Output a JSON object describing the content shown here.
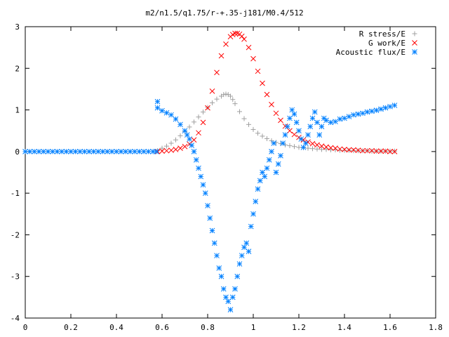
{
  "chart_data": {
    "type": "scatter",
    "title": "m2/n1.5/q1.75/r-+.35-j181/M0.4/512",
    "xlabel": "",
    "ylabel": "",
    "xlim": [
      0,
      1.8
    ],
    "ylim": [
      -4,
      3
    ],
    "x_ticks": [
      "0",
      "0.2",
      "0.4",
      "0.6",
      "0.8",
      "1",
      "1.2",
      "1.4",
      "1.6",
      "1.8"
    ],
    "y_ticks": [
      "-4",
      "-3",
      "-2",
      "-1",
      "0",
      "1",
      "2",
      "3"
    ],
    "grid": false,
    "legend_position": "top-right",
    "series": [
      {
        "name": "R stress/E",
        "marker": "+",
        "color": "#a0a0a0",
        "x": [
          0.58,
          0.6,
          0.62,
          0.64,
          0.66,
          0.68,
          0.7,
          0.72,
          0.74,
          0.76,
          0.78,
          0.8,
          0.82,
          0.84,
          0.86,
          0.87,
          0.88,
          0.89,
          0.9,
          0.91,
          0.92,
          0.94,
          0.96,
          0.98,
          1.0,
          1.02,
          1.04,
          1.06,
          1.08,
          1.1,
          1.12,
          1.14,
          1.16,
          1.18,
          1.2,
          1.22,
          1.24,
          1.26,
          1.28,
          1.3,
          1.32,
          1.34,
          1.36,
          1.38,
          1.4,
          1.42,
          1.44,
          1.46,
          1.48,
          1.5,
          1.52,
          1.54,
          1.56,
          1.58,
          1.6,
          1.62
        ],
        "y": [
          0.02,
          0.08,
          0.13,
          0.2,
          0.28,
          0.38,
          0.48,
          0.59,
          0.71,
          0.83,
          0.95,
          1.06,
          1.17,
          1.26,
          1.33,
          1.37,
          1.38,
          1.37,
          1.33,
          1.25,
          1.15,
          0.96,
          0.79,
          0.65,
          0.53,
          0.44,
          0.37,
          0.31,
          0.26,
          0.22,
          0.19,
          0.16,
          0.14,
          0.12,
          0.1,
          0.09,
          0.08,
          0.07,
          0.06,
          0.05,
          0.05,
          0.04,
          0.04,
          0.03,
          0.03,
          0.03,
          0.02,
          0.02,
          0.02,
          0.02,
          0.01,
          0.01,
          0.01,
          0.01,
          0.01,
          0.01
        ]
      },
      {
        "name": "G work/E",
        "marker": "x",
        "color": "#ff0000",
        "x": [
          0.58,
          0.6,
          0.62,
          0.64,
          0.66,
          0.68,
          0.7,
          0.72,
          0.74,
          0.76,
          0.78,
          0.8,
          0.82,
          0.84,
          0.86,
          0.88,
          0.9,
          0.91,
          0.92,
          0.93,
          0.94,
          0.95,
          0.96,
          0.98,
          1.0,
          1.02,
          1.04,
          1.06,
          1.08,
          1.1,
          1.12,
          1.14,
          1.16,
          1.18,
          1.2,
          1.22,
          1.24,
          1.26,
          1.28,
          1.3,
          1.32,
          1.34,
          1.36,
          1.38,
          1.4,
          1.42,
          1.44,
          1.46,
          1.48,
          1.5,
          1.52,
          1.54,
          1.56,
          1.58,
          1.6,
          1.62
        ],
        "y": [
          0.0,
          0.01,
          0.02,
          0.03,
          0.05,
          0.08,
          0.12,
          0.18,
          0.28,
          0.45,
          0.7,
          1.05,
          1.45,
          1.9,
          2.3,
          2.58,
          2.76,
          2.81,
          2.84,
          2.84,
          2.82,
          2.77,
          2.7,
          2.5,
          2.23,
          1.93,
          1.64,
          1.37,
          1.13,
          0.92,
          0.75,
          0.61,
          0.5,
          0.41,
          0.34,
          0.28,
          0.23,
          0.19,
          0.16,
          0.13,
          0.11,
          0.09,
          0.08,
          0.06,
          0.05,
          0.04,
          0.04,
          0.03,
          0.02,
          0.02,
          0.02,
          0.01,
          0.01,
          0.01,
          0.0,
          0.0
        ]
      },
      {
        "name": "Acoustic flux/E",
        "marker": "*",
        "color": "#0080ff",
        "x": [
          0.0,
          0.02,
          0.04,
          0.06,
          0.08,
          0.1,
          0.12,
          0.14,
          0.16,
          0.18,
          0.2,
          0.22,
          0.24,
          0.26,
          0.28,
          0.3,
          0.32,
          0.34,
          0.36,
          0.38,
          0.4,
          0.42,
          0.44,
          0.46,
          0.48,
          0.5,
          0.52,
          0.54,
          0.56,
          0.575,
          0.58,
          0.58,
          0.6,
          0.62,
          0.64,
          0.66,
          0.68,
          0.7,
          0.71,
          0.72,
          0.73,
          0.74,
          0.75,
          0.76,
          0.77,
          0.78,
          0.79,
          0.8,
          0.81,
          0.82,
          0.83,
          0.84,
          0.85,
          0.86,
          0.87,
          0.88,
          0.89,
          0.9,
          0.91,
          0.92,
          0.93,
          0.94,
          0.95,
          0.96,
          0.97,
          0.98,
          0.99,
          1.0,
          1.01,
          1.02,
          1.03,
          1.04,
          1.05,
          1.06,
          1.07,
          1.08,
          1.09,
          1.1,
          1.11,
          1.12,
          1.13,
          1.14,
          1.15,
          1.16,
          1.17,
          1.18,
          1.19,
          1.2,
          1.21,
          1.22,
          1.23,
          1.24,
          1.25,
          1.26,
          1.27,
          1.28,
          1.29,
          1.3,
          1.31,
          1.32,
          1.34,
          1.36,
          1.38,
          1.4,
          1.42,
          1.44,
          1.46,
          1.48,
          1.5,
          1.52,
          1.54,
          1.56,
          1.58,
          1.6,
          1.62
        ],
        "y": [
          0.0,
          0.0,
          0.0,
          0.0,
          0.0,
          0.0,
          0.0,
          0.0,
          0.0,
          0.0,
          0.0,
          0.0,
          0.0,
          0.0,
          0.0,
          0.0,
          0.0,
          0.0,
          0.0,
          0.0,
          0.0,
          0.0,
          0.0,
          0.0,
          0.0,
          0.0,
          0.0,
          0.0,
          0.0,
          0.0,
          1.2,
          1.05,
          0.98,
          0.93,
          0.88,
          0.78,
          0.65,
          0.5,
          0.4,
          0.3,
          0.15,
          0.0,
          -0.2,
          -0.4,
          -0.6,
          -0.8,
          -1.0,
          -1.3,
          -1.6,
          -1.9,
          -2.2,
          -2.5,
          -2.8,
          -3.0,
          -3.3,
          -3.5,
          -3.6,
          -3.8,
          -3.5,
          -3.3,
          -3.0,
          -2.7,
          -2.5,
          -2.3,
          -2.2,
          -2.4,
          -1.8,
          -1.5,
          -1.2,
          -0.9,
          -0.7,
          -0.5,
          -0.6,
          -0.4,
          -0.2,
          0.0,
          0.2,
          -0.5,
          -0.3,
          -0.1,
          0.2,
          0.4,
          0.6,
          0.8,
          1.0,
          0.9,
          0.7,
          0.5,
          0.3,
          0.1,
          0.2,
          0.4,
          0.6,
          0.8,
          0.95,
          0.7,
          0.4,
          0.6,
          0.8,
          0.75,
          0.7,
          0.72,
          0.78,
          0.8,
          0.84,
          0.88,
          0.9,
          0.92,
          0.95,
          0.97,
          0.99,
          1.02,
          1.05,
          1.08,
          1.11
        ]
      }
    ]
  }
}
